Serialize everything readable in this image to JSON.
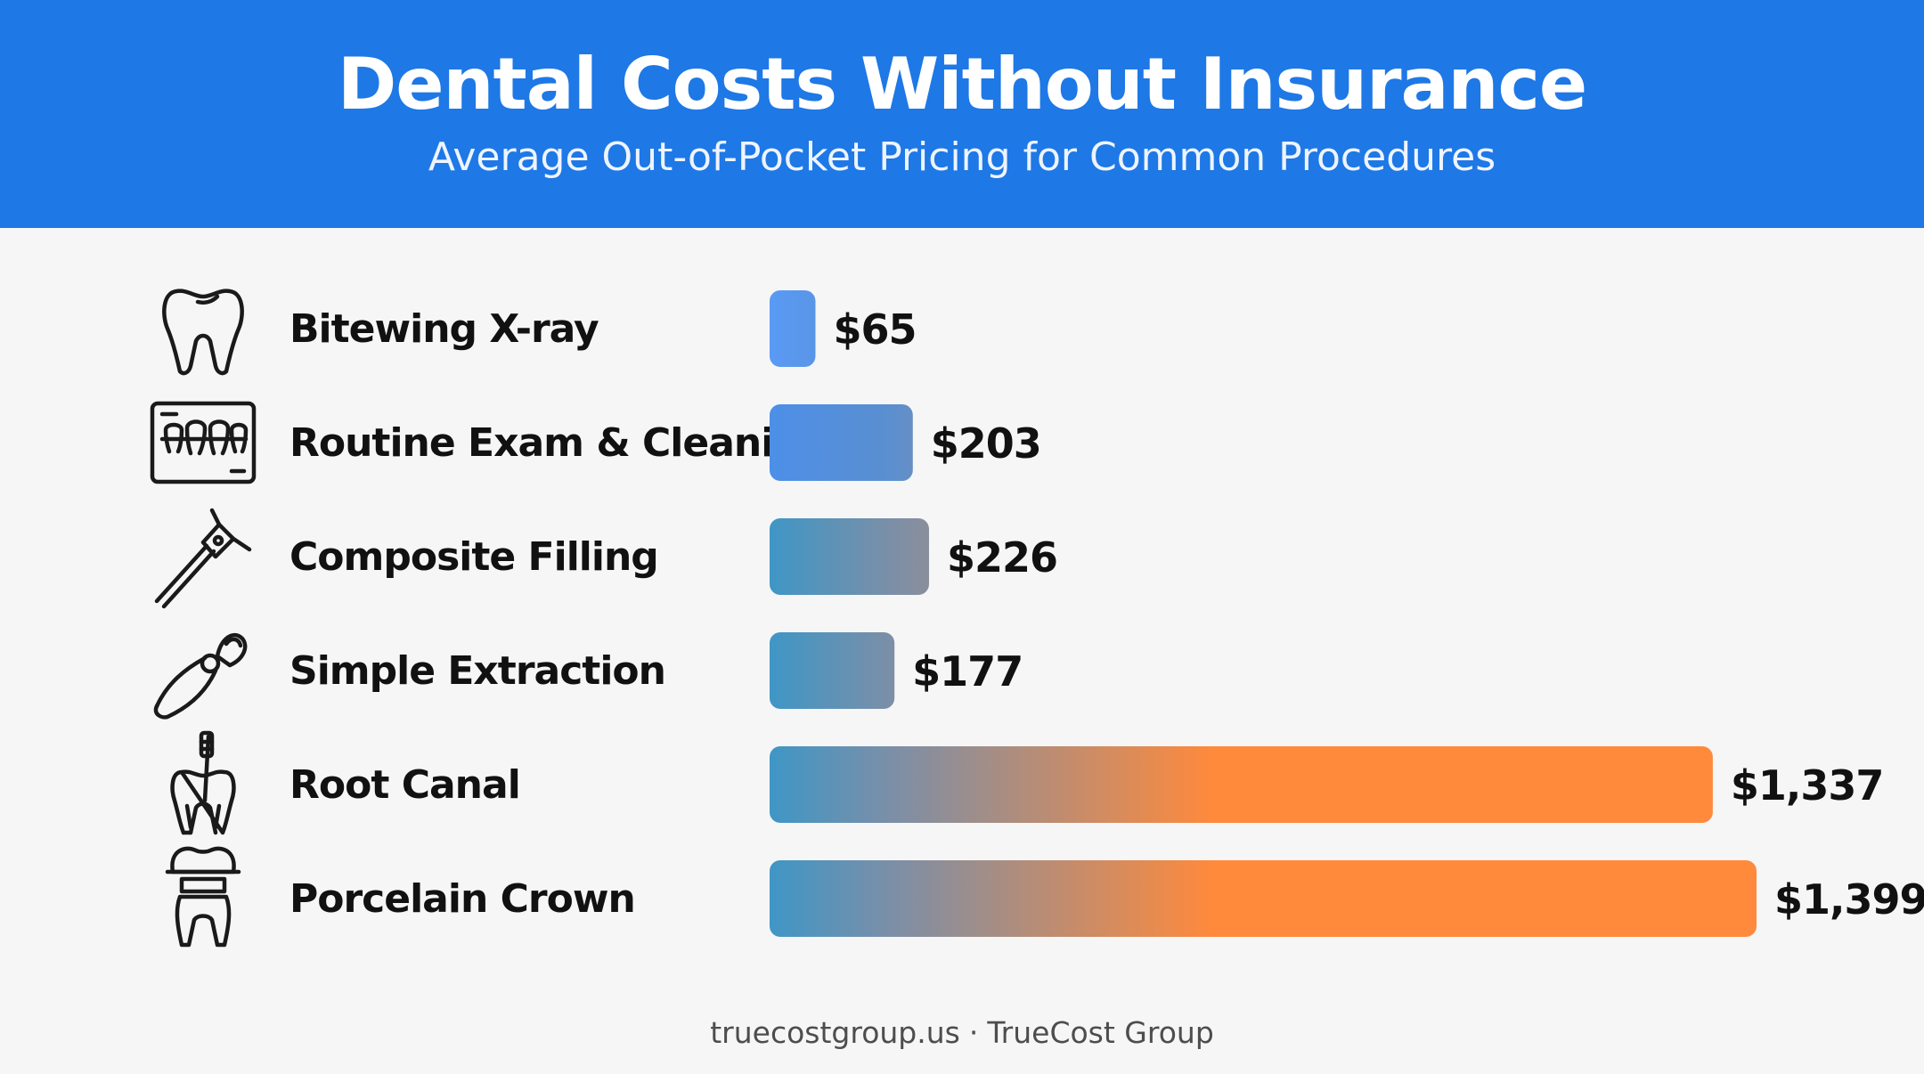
{
  "header": {
    "title": "Dental Costs Without Insurance",
    "subtitle": "Average Out-of-Pocket Pricing for Common Procedures"
  },
  "footer": {
    "site": "truecostgroup.us",
    "separator": "·",
    "brand": "TrueCost Group"
  },
  "colors": {
    "header_bg": "#1e78e6",
    "bar_blue": "#5a9af5",
    "bar_teal": "#3f96c6",
    "bar_orange": "#ff8a3c",
    "label_text": "#111111"
  },
  "chart_data": {
    "type": "bar",
    "orientation": "horizontal",
    "title": "Dental Costs Without Insurance",
    "subtitle": "Average Out-of-Pocket Pricing for Common Procedures",
    "categories": [
      "Bitewing X-ray",
      "Routine Exam & Cleaning",
      "Composite Filling",
      "Simple Extraction",
      "Root Canal",
      "Porcelain Crown"
    ],
    "values": [
      65,
      203,
      226,
      177,
      1337,
      1399
    ],
    "value_labels": [
      "$65",
      "$203",
      "$226",
      "$177",
      "$1,337",
      "$1,399"
    ],
    "icons": [
      "tooth-icon",
      "dental-xray-icon",
      "dental-drill-icon",
      "extraction-forceps-icon",
      "root-canal-icon",
      "crown-icon"
    ],
    "xlim": [
      0,
      1399
    ],
    "grid": false,
    "legend": "none",
    "xlabel": "",
    "ylabel": ""
  }
}
